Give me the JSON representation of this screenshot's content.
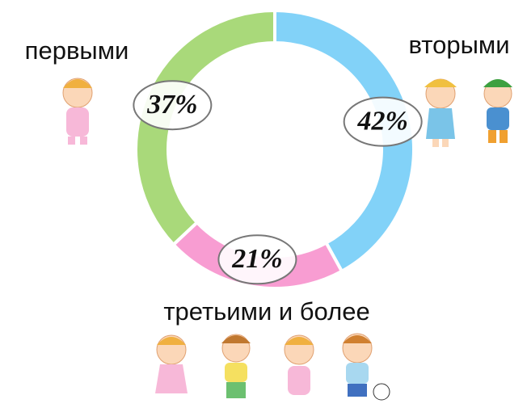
{
  "chart_data": {
    "type": "pie",
    "donut": true,
    "categories": [
      "вторыми",
      "третьими и более",
      "первыми"
    ],
    "values": [
      42,
      21,
      37
    ],
    "value_labels": [
      "42%",
      "21%",
      "37%"
    ],
    "colors": [
      "#82d2f8",
      "#f89dd2",
      "#a9d97a"
    ]
  }
}
